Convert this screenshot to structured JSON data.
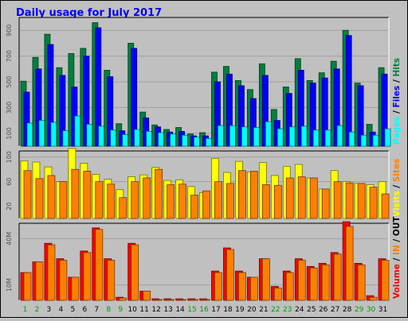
{
  "title": "Daily usage for July 2017",
  "chart_data": [
    {
      "type": "bar",
      "title": "Daily usage for July 2017",
      "ylabel": "Pages / Files / Hits",
      "ylabel_parts": [
        "Pages",
        " / ",
        "Files",
        " / ",
        "Hits"
      ],
      "ylim": [
        0,
        1000
      ],
      "yticks": [
        100,
        300,
        500,
        700,
        900
      ],
      "categories": [
        "1",
        "2",
        "3",
        "4",
        "5",
        "6",
        "7",
        "8",
        "9",
        "10",
        "11",
        "12",
        "13",
        "14",
        "15",
        "16",
        "17",
        "18",
        "19",
        "20",
        "21",
        "22",
        "23",
        "24",
        "25",
        "26",
        "27",
        "28",
        "29",
        "30",
        "31"
      ],
      "series": [
        {
          "name": "Hits",
          "color": "#008040",
          "values": [
            505,
            690,
            870,
            610,
            720,
            760,
            960,
            590,
            175,
            800,
            265,
            165,
            130,
            145,
            95,
            105,
            575,
            620,
            510,
            440,
            640,
            285,
            460,
            680,
            510,
            570,
            660,
            900,
            490,
            170,
            610
          ]
        },
        {
          "name": "Files",
          "color": "#0000ff",
          "values": [
            420,
            600,
            790,
            550,
            460,
            700,
            920,
            540,
            120,
            760,
            220,
            150,
            110,
            115,
            80,
            80,
            500,
            560,
            470,
            370,
            550,
            200,
            410,
            590,
            490,
            530,
            600,
            860,
            470,
            110,
            560
          ]
        },
        {
          "name": "Pages",
          "color": "#00ffff",
          "values": [
            180,
            200,
            185,
            120,
            235,
            170,
            155,
            125,
            90,
            130,
            115,
            105,
            95,
            85,
            70,
            60,
            160,
            160,
            150,
            145,
            190,
            135,
            150,
            155,
            125,
            125,
            160,
            110,
            85,
            85,
            135
          ]
        }
      ]
    },
    {
      "type": "bar",
      "ylabel": "Visits / Sites",
      "ylabel_parts": [
        "Visits",
        " / ",
        "Sites"
      ],
      "ylim": [
        0,
        110
      ],
      "yticks": [
        20,
        60,
        100
      ],
      "categories": [
        "1",
        "2",
        "3",
        "4",
        "5",
        "6",
        "7",
        "8",
        "9",
        "10",
        "11",
        "12",
        "13",
        "14",
        "15",
        "16",
        "17",
        "18",
        "19",
        "20",
        "21",
        "22",
        "23",
        "24",
        "25",
        "26",
        "27",
        "28",
        "29",
        "30",
        "31"
      ],
      "series": [
        {
          "name": "Visits",
          "color": "#ffff00",
          "values": [
            94,
            92,
            84,
            60,
            114,
            90,
            72,
            64,
            47,
            68,
            71,
            83,
            62,
            63,
            52,
            42,
            98,
            75,
            93,
            76,
            91,
            70,
            85,
            88,
            66,
            48,
            78,
            60,
            57,
            55,
            60
          ]
        },
        {
          "name": "Sites",
          "color": "#ff8000",
          "values": [
            78,
            65,
            70,
            60,
            80,
            77,
            60,
            56,
            34,
            60,
            66,
            80,
            55,
            56,
            38,
            45,
            60,
            57,
            78,
            77,
            55,
            54,
            66,
            68,
            66,
            48,
            60,
            58,
            57,
            51,
            40
          ]
        }
      ]
    },
    {
      "type": "bar",
      "ylabel": "Volume / IN / OUT",
      "ylabel_parts": [
        "Volume",
        " / ",
        "IN",
        " / ",
        "OUT"
      ],
      "ylim": [
        0,
        50
      ],
      "yticks": [
        10,
        40
      ],
      "ytick_labels": [
        "10M",
        "40M"
      ],
      "categories": [
        "1",
        "2",
        "3",
        "4",
        "5",
        "6",
        "7",
        "8",
        "9",
        "10",
        "11",
        "12",
        "13",
        "14",
        "15",
        "16",
        "17",
        "18",
        "19",
        "20",
        "21",
        "22",
        "23",
        "24",
        "25",
        "26",
        "27",
        "28",
        "29",
        "30",
        "31"
      ],
      "series": [
        {
          "name": "Volume",
          "color": "#ff0000",
          "values": [
            18,
            25,
            37,
            27,
            15,
            32,
            47,
            27,
            2,
            37,
            6,
            1,
            1,
            1,
            1,
            1,
            19,
            34,
            19,
            15,
            27,
            9,
            19,
            27,
            22,
            24,
            31,
            51,
            24,
            3,
            27
          ]
        },
        {
          "name": "IN",
          "color": "#ff8000",
          "values": [
            18,
            25,
            36,
            26,
            15,
            31,
            46,
            26,
            1.5,
            36,
            6,
            0.5,
            0.5,
            0.5,
            0.5,
            0.5,
            18,
            33,
            18,
            15,
            27,
            8,
            18,
            26,
            21,
            23,
            30,
            48,
            23,
            2,
            26
          ]
        }
      ]
    }
  ],
  "x_labels": [
    "1",
    "2",
    "3",
    "4",
    "5",
    "6",
    "7",
    "8",
    "9",
    "10",
    "11",
    "12",
    "13",
    "14",
    "15",
    "16",
    "17",
    "18",
    "19",
    "20",
    "21",
    "22",
    "23",
    "24",
    "25",
    "26",
    "27",
    "28",
    "29",
    "30",
    "31"
  ],
  "weekend_days": [
    1,
    2,
    8,
    9,
    15,
    16,
    22,
    23,
    29,
    30
  ],
  "colors": {
    "background": "#c0c0c0",
    "plot_bg": "#c0c0c0",
    "grid": "#a0a0a0",
    "border_dark": "#000000",
    "border_light": "#ffffff",
    "title": "#0000ff",
    "axis_text": "#505050",
    "weekday_label": "#000000",
    "weekend_label": "#00a000"
  }
}
